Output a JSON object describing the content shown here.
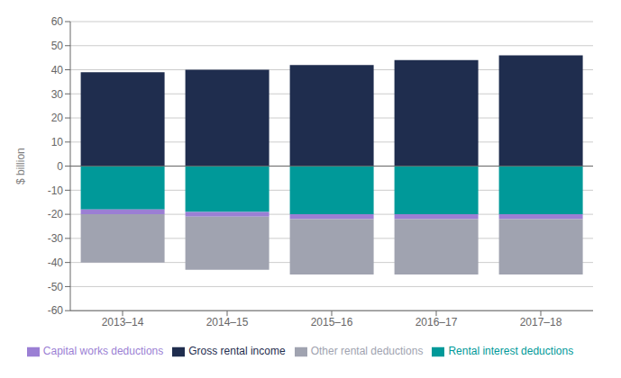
{
  "chart_data": {
    "type": "bar",
    "stacked": true,
    "categories": [
      "2013–14",
      "2014–15",
      "2015–16",
      "2016–17",
      "2017–18"
    ],
    "series": [
      {
        "name": "Gross rental income",
        "color": "#1f2d4e",
        "values": [
          39,
          40,
          42,
          44,
          46
        ]
      },
      {
        "name": "Rental interest deductions",
        "color": "#009999",
        "values": [
          -18,
          -19,
          -20,
          -20,
          -20
        ]
      },
      {
        "name": "Capital works deductions",
        "color": "#9b7fd4",
        "values": [
          -2,
          -2,
          -2,
          -2,
          -2
        ]
      },
      {
        "name": "Other rental deductions",
        "color": "#a0a3b0",
        "values": [
          -20,
          -22,
          -23,
          -23,
          -23
        ]
      }
    ],
    "ylabel": "$ billion",
    "ylim": [
      -60,
      60
    ],
    "yticks": [
      -60,
      -50,
      -40,
      -30,
      -20,
      -10,
      0,
      10,
      20,
      30,
      40,
      50,
      60
    ],
    "grid": true,
    "legend": "bottom"
  }
}
